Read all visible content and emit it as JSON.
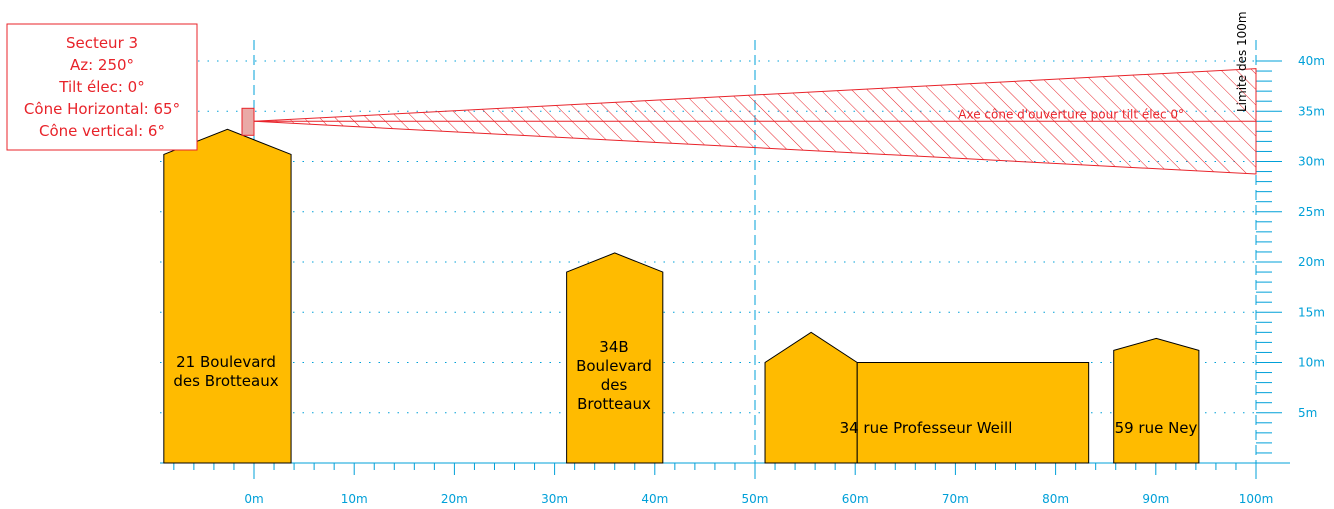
{
  "info_box": {
    "lines": [
      "Secteur 3",
      "Az: 250°",
      "Tilt élec: 0°",
      "Cône Horizontal: 65°",
      "Cône vertical: 6°"
    ]
  },
  "cone": {
    "label": "Axe cône d'ouverture pour tilt élec 0°",
    "origin_height_m": 34,
    "tilt_deg": 0,
    "vertical_cone_deg": 6,
    "length_m": 100
  },
  "limit_label": "Limite des 100m",
  "x_axis": {
    "ticks": [
      "0m",
      "10m",
      "20m",
      "30m",
      "40m",
      "50m",
      "60m",
      "70m",
      "80m",
      "90m",
      "100m"
    ]
  },
  "y_axis": {
    "ticks": [
      "5m",
      "10m",
      "15m",
      "20m",
      "25m",
      "30m",
      "35m",
      "40m"
    ]
  },
  "buildings": [
    {
      "label_lines": [
        "21 Boulevard",
        "des Brotteaux"
      ],
      "x_start_m": -9,
      "x_end_m": 3.7,
      "eave_m": 30.7,
      "ridge_m": 33.2
    },
    {
      "label_lines": [
        "34B",
        "Boulevard",
        "des",
        "Brotteaux"
      ],
      "x_start_m": 31.2,
      "x_end_m": 40.8,
      "eave_m": 19,
      "ridge_m": 20.9
    },
    {
      "label_lines": [],
      "x_start_m": 51,
      "x_end_m": 60.2,
      "eave_m": 10,
      "ridge_m": 13
    },
    {
      "label_lines": [
        "34 rue Professeur Weill"
      ],
      "x_start_m": 60.2,
      "x_end_m": 83.3,
      "eave_m": 10,
      "ridge_m": 10
    },
    {
      "label_lines": [
        "59 rue Ney"
      ],
      "x_start_m": 85.8,
      "x_end_m": 94.3,
      "eave_m": 11.2,
      "ridge_m": 12.4
    }
  ],
  "colors": {
    "building": "#ffbb00",
    "cone": "#e8232a",
    "grid": "#00a0d8",
    "info": "#e8232a"
  }
}
